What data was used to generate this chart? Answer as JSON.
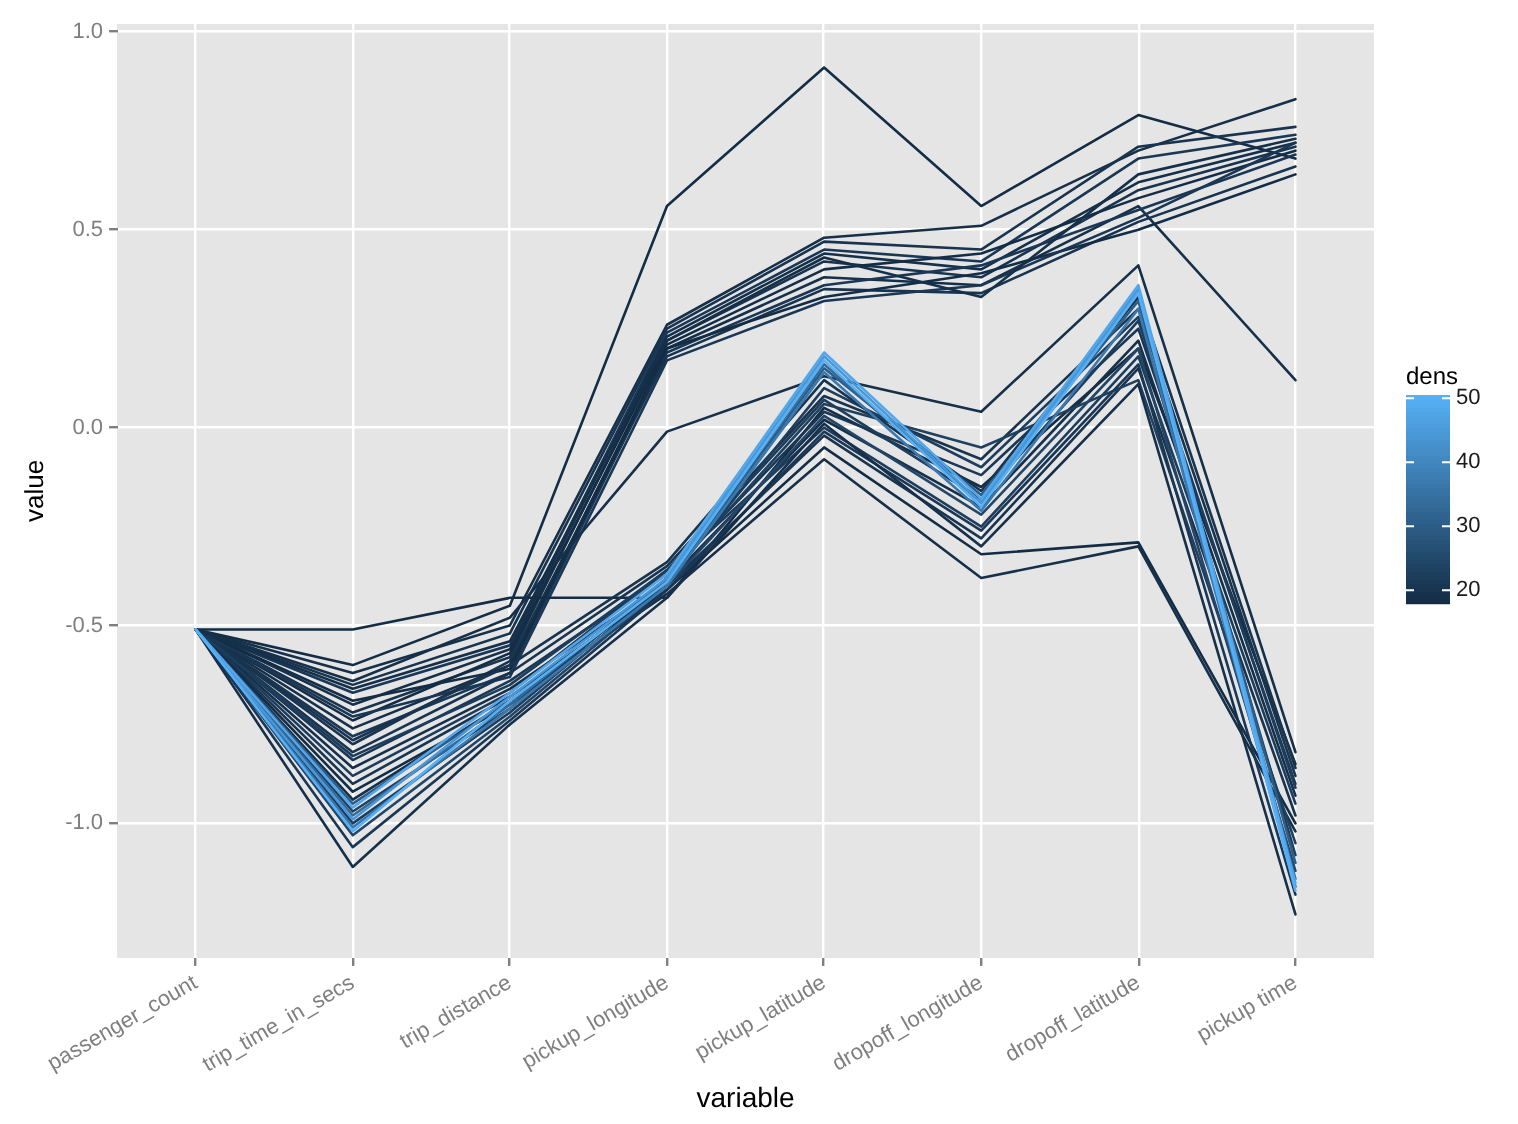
{
  "chart_data": {
    "type": "line",
    "xlabel": "variable",
    "ylabel": "value",
    "clabel": "dens",
    "categories": [
      "passenger_count",
      "trip_time_in_secs",
      "trip_distance",
      "pickup_longitude",
      "pickup_latitude",
      "dropoff_longitude",
      "dropoff_latitude",
      "pickup time"
    ],
    "ylim": [
      -1.34,
      1.02
    ],
    "yticks": [
      {
        "value": -1,
        "label": "-1.0"
      },
      {
        "value": -0.5,
        "label": "-0.5"
      },
      {
        "value": 0,
        "label": "0.0"
      },
      {
        "value": 0.5,
        "label": "0.5"
      },
      {
        "value": 1,
        "label": "1.0"
      }
    ],
    "clim": [
      18,
      50.5
    ],
    "cticks": [
      20,
      30,
      40,
      50
    ],
    "grid": true,
    "series": [
      {
        "color": "#142d46",
        "values": [
          -0.51,
          -0.6,
          -0.45,
          0.56,
          0.91,
          0.56,
          0.79,
          0.68
        ]
      },
      {
        "color": "#16304a",
        "values": [
          -0.51,
          -0.62,
          -0.5,
          0.26,
          0.48,
          0.51,
          0.7,
          0.83
        ]
      },
      {
        "color": "#18344f",
        "values": [
          -0.51,
          -0.65,
          -0.52,
          0.25,
          0.47,
          0.45,
          0.71,
          0.76
        ]
      },
      {
        "color": "#1a3755",
        "values": [
          -0.51,
          -0.67,
          -0.55,
          0.24,
          0.45,
          0.42,
          0.68,
          0.74
        ]
      },
      {
        "color": "#16304a",
        "values": [
          -0.51,
          -0.7,
          -0.56,
          0.23,
          0.44,
          0.4,
          0.62,
          0.72
        ]
      },
      {
        "color": "#18344f",
        "values": [
          -0.51,
          -0.72,
          -0.58,
          0.22,
          0.42,
          0.38,
          0.6,
          0.71
        ]
      },
      {
        "color": "#142d46",
        "values": [
          -0.51,
          -0.74,
          -0.57,
          0.21,
          0.4,
          0.44,
          0.58,
          0.7
        ]
      },
      {
        "color": "#16304a",
        "values": [
          -0.51,
          -0.76,
          -0.6,
          0.2,
          0.38,
          0.36,
          0.56,
          0.12
        ]
      },
      {
        "color": "#1a3755",
        "values": [
          -0.51,
          -0.78,
          -0.62,
          0.19,
          0.36,
          0.41,
          0.55,
          0.69
        ]
      },
      {
        "color": "#18344f",
        "values": [
          -0.51,
          -0.8,
          -0.59,
          0.18,
          0.35,
          0.34,
          0.52,
          0.66
        ]
      },
      {
        "color": "#142d46",
        "values": [
          -0.51,
          -0.69,
          -0.61,
          0.2,
          0.33,
          0.39,
          0.5,
          0.64
        ]
      },
      {
        "color": "#1a3755",
        "values": [
          -0.51,
          -0.73,
          -0.63,
          0.17,
          0.32,
          0.36,
          0.53,
          0.72
        ]
      },
      {
        "color": "#16304a",
        "values": [
          -0.51,
          -0.66,
          -0.54,
          0.22,
          0.43,
          0.33,
          0.64,
          0.73
        ]
      },
      {
        "color": "#142d46",
        "values": [
          -0.51,
          -0.51,
          -0.43,
          -0.43,
          0.05,
          -0.15,
          0.2,
          -0.85
        ]
      },
      {
        "color": "#16304a",
        "values": [
          -0.51,
          -0.64,
          -0.48,
          -0.01,
          0.13,
          0.04,
          0.41,
          -0.82
        ]
      },
      {
        "color": "#18344f",
        "values": [
          -0.51,
          -0.82,
          -0.62,
          -0.35,
          0.08,
          -0.08,
          0.3,
          -0.88
        ]
      },
      {
        "color": "#1a3755",
        "values": [
          -0.51,
          -0.84,
          -0.64,
          -0.37,
          0.04,
          -0.12,
          0.25,
          -0.9
        ]
      },
      {
        "color": "#16304a",
        "values": [
          -0.51,
          -0.86,
          -0.66,
          -0.39,
          0.02,
          -0.2,
          0.22,
          -0.93
        ]
      },
      {
        "color": "#1d3d5d",
        "values": [
          -0.51,
          -0.88,
          -0.67,
          -0.36,
          0,
          -0.25,
          0.18,
          -0.95
        ]
      },
      {
        "color": "#18344f",
        "values": [
          -0.51,
          -0.9,
          -0.68,
          -0.4,
          -0.02,
          -0.28,
          0.15,
          -0.98
        ]
      },
      {
        "color": "#142d46",
        "values": [
          -0.51,
          -0.92,
          -0.7,
          -0.41,
          -0.05,
          -0.32,
          -0.29,
          -1
        ]
      },
      {
        "color": "#16304a",
        "values": [
          -0.51,
          -0.94,
          -0.69,
          -0.42,
          -0.08,
          -0.38,
          -0.3,
          -1.02
        ]
      },
      {
        "color": "#20405f",
        "values": [
          -0.51,
          -0.97,
          -0.71,
          -0.38,
          0.06,
          -0.05,
          0.12,
          -1.05
        ]
      },
      {
        "color": "#1d3d5d",
        "values": [
          -0.51,
          -1,
          -0.72,
          -0.39,
          0.1,
          -0.1,
          0.28,
          -1.08
        ]
      },
      {
        "color": "#234668",
        "values": [
          -0.51,
          -1.03,
          -0.73,
          -0.4,
          0.03,
          -0.22,
          0.2,
          -1.12
        ]
      },
      {
        "color": "#1a3755",
        "values": [
          -0.51,
          -1.06,
          -0.74,
          -0.41,
          -0.01,
          -0.26,
          0.16,
          -1.18
        ]
      },
      {
        "color": "#16304a",
        "values": [
          -0.51,
          -1.11,
          -0.75,
          -0.43,
          0.01,
          -0.3,
          0.11,
          -1.23
        ]
      },
      {
        "color": "#18344f",
        "values": [
          -0.51,
          -0.79,
          -0.6,
          -0.34,
          0.12,
          -0.16,
          0.33,
          -0.86
        ]
      },
      {
        "color": "#1d3d5d",
        "values": [
          -0.51,
          -0.83,
          -0.65,
          -0.36,
          0.07,
          -0.18,
          0.27,
          -0.91
        ]
      },
      {
        "color": "#2d5e8a",
        "values": [
          -0.51,
          -0.95,
          -0.69,
          -0.39,
          0.15,
          -0.17,
          0.32,
          -1.1
        ]
      },
      {
        "color": "#336a9a",
        "values": [
          -0.51,
          -0.98,
          -0.7,
          -0.38,
          0.16,
          -0.19,
          0.34,
          -1.14
        ]
      },
      {
        "color": "#3a78ad",
        "values": [
          -0.51,
          -1.01,
          -0.71,
          -0.4,
          0.14,
          -0.21,
          0.3,
          -1.16
        ]
      },
      {
        "color": "#4a96d6",
        "values": [
          -0.51,
          -0.99,
          -0.68,
          -0.38,
          0.18,
          -0.19,
          0.35,
          -1.16
        ]
      },
      {
        "color": "#52a6e9",
        "values": [
          -0.51,
          -0.96,
          -0.67,
          -0.37,
          0.19,
          -0.18,
          0.36,
          -1.15
        ]
      },
      {
        "color": "#56b0f5",
        "values": [
          -0.51,
          -1.02,
          -0.69,
          -0.39,
          0.17,
          -0.2,
          0.34,
          -1.17
        ]
      }
    ]
  }
}
